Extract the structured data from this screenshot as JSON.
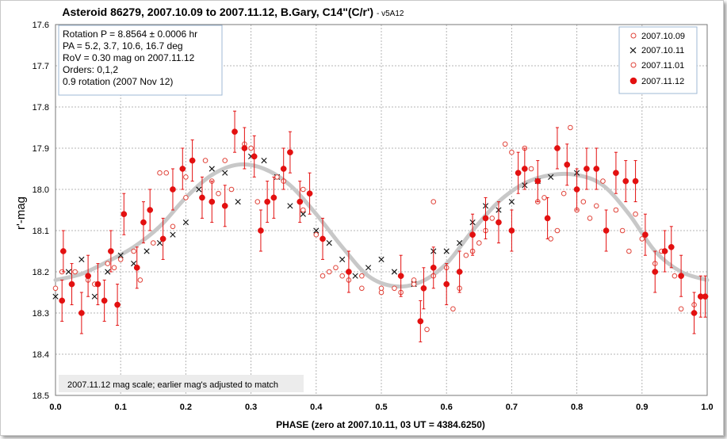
{
  "chart_data": {
    "type": "scatter",
    "title": "Asteroid 86279, 2007.10.09 to 2007.11.12, B.Gary, C14\"(C/r')",
    "title_suffix": "- v5A12",
    "xlabel": "PHASE (zero at 2007.10.11, 03 UT = 4384.6250)",
    "ylabel": "r'-mag",
    "xlim": [
      0.0,
      1.0
    ],
    "ylim": [
      17.6,
      18.5
    ],
    "y_inverted": true,
    "grid": true,
    "legend_position": "top-right",
    "x_ticks": [
      "0.0",
      "0.1",
      "0.2",
      "0.3",
      "0.4",
      "0.5",
      "0.6",
      "0.7",
      "0.8",
      "0.9",
      "1.0"
    ],
    "y_ticks": [
      "17.6",
      "17.7",
      "17.8",
      "17.9",
      "18.0",
      "18.1",
      "18.2",
      "18.3",
      "18.4",
      "18.5"
    ],
    "info_lines": [
      "Rotation P = 8.8564 ± 0.0006 hr",
      "PA =  5.2, 3.7, 10.6, 16.7 deg",
      "RoV = 0.30 mag on 2007.11.12",
      "Orders: 0,1,2",
      " 0.9 rotation (2007 Nov 12)"
    ],
    "note": "2007.11.12 mag scale; earlier mag's adjusted to match",
    "fit_curve": {
      "color": "#c8c8c8",
      "points": [
        [
          0.0,
          18.22
        ],
        [
          0.04,
          18.205
        ],
        [
          0.08,
          18.175
        ],
        [
          0.12,
          18.14
        ],
        [
          0.16,
          18.09
        ],
        [
          0.2,
          18.02
        ],
        [
          0.24,
          17.965
        ],
        [
          0.28,
          17.94
        ],
        [
          0.32,
          17.95
        ],
        [
          0.36,
          17.99
        ],
        [
          0.4,
          18.06
        ],
        [
          0.44,
          18.14
        ],
        [
          0.48,
          18.21
        ],
        [
          0.52,
          18.235
        ],
        [
          0.56,
          18.225
        ],
        [
          0.6,
          18.18
        ],
        [
          0.64,
          18.1
        ],
        [
          0.68,
          18.03
        ],
        [
          0.72,
          17.985
        ],
        [
          0.76,
          17.965
        ],
        [
          0.8,
          17.965
        ],
        [
          0.84,
          17.99
        ],
        [
          0.88,
          18.06
        ],
        [
          0.92,
          18.15
        ],
        [
          0.96,
          18.2
        ],
        [
          1.0,
          18.22
        ]
      ]
    },
    "series": [
      {
        "name": "2007.10.09",
        "marker": "open-circle",
        "color": "#e0443a",
        "points": [
          [
            0.0,
            18.24
          ],
          [
            0.03,
            18.2
          ],
          [
            0.06,
            18.23
          ],
          [
            0.08,
            18.18
          ],
          [
            0.1,
            18.17
          ],
          [
            0.12,
            18.15
          ],
          [
            0.15,
            18.13
          ],
          [
            0.18,
            18.09
          ],
          [
            0.2,
            18.02
          ],
          [
            0.24,
            17.98
          ],
          [
            0.26,
            17.93
          ],
          [
            0.27,
            18.0
          ],
          [
            0.3,
            17.9
          ],
          [
            0.34,
            17.97
          ],
          [
            0.38,
            18.05
          ],
          [
            0.4,
            18.11
          ],
          [
            0.42,
            18.2
          ],
          [
            0.44,
            18.21
          ],
          [
            0.47,
            18.24
          ],
          [
            0.5,
            18.25
          ],
          [
            0.52,
            18.24
          ],
          [
            0.55,
            18.23
          ],
          [
            0.58,
            18.21
          ],
          [
            0.6,
            18.19
          ],
          [
            0.62,
            18.24
          ],
          [
            0.64,
            18.15
          ],
          [
            0.66,
            18.1
          ],
          [
            0.69,
            17.89
          ],
          [
            0.72,
            17.9
          ],
          [
            0.74,
            18.03
          ],
          [
            0.76,
            18.12
          ],
          [
            0.78,
            18.01
          ],
          [
            0.8,
            18.05
          ],
          [
            0.82,
            18.07
          ],
          [
            0.84,
            17.98
          ],
          [
            0.86,
            18.05
          ],
          [
            0.88,
            18.15
          ],
          [
            0.9,
            18.12
          ],
          [
            0.92,
            18.18
          ],
          [
            0.95,
            18.21
          ],
          [
            0.98,
            18.28
          ]
        ]
      },
      {
        "name": "2007.10.11",
        "marker": "x",
        "color": "#111111",
        "points": [
          [
            0.0,
            18.26
          ],
          [
            0.02,
            18.2
          ],
          [
            0.04,
            18.17
          ],
          [
            0.06,
            18.26
          ],
          [
            0.08,
            18.2
          ],
          [
            0.1,
            18.16
          ],
          [
            0.12,
            18.18
          ],
          [
            0.14,
            18.15
          ],
          [
            0.16,
            18.13
          ],
          [
            0.18,
            18.11
          ],
          [
            0.2,
            18.08
          ],
          [
            0.22,
            18.0
          ],
          [
            0.24,
            17.95
          ],
          [
            0.26,
            17.96
          ],
          [
            0.28,
            18.03
          ],
          [
            0.3,
            17.92
          ],
          [
            0.32,
            17.93
          ],
          [
            0.34,
            17.97
          ],
          [
            0.36,
            18.04
          ],
          [
            0.38,
            18.06
          ],
          [
            0.4,
            18.1
          ],
          [
            0.42,
            18.13
          ],
          [
            0.44,
            18.17
          ],
          [
            0.46,
            18.21
          ],
          [
            0.48,
            18.19
          ],
          [
            0.5,
            18.17
          ],
          [
            0.52,
            18.2
          ],
          [
            0.55,
            18.23
          ],
          [
            0.58,
            18.15
          ],
          [
            0.6,
            18.15
          ],
          [
            0.62,
            18.13
          ],
          [
            0.64,
            18.08
          ],
          [
            0.66,
            18.04
          ],
          [
            0.68,
            18.05
          ],
          [
            0.7,
            18.03
          ],
          [
            0.72,
            17.99
          ],
          [
            0.74,
            17.98
          ],
          [
            0.76,
            17.97
          ],
          [
            0.8,
            17.96
          ]
        ]
      },
      {
        "name": "2007.11.01",
        "marker": "open-circle",
        "color": "#e0443a",
        "points": [
          [
            0.01,
            18.2
          ],
          [
            0.05,
            18.22
          ],
          [
            0.09,
            18.19
          ],
          [
            0.13,
            18.22
          ],
          [
            0.16,
            17.96
          ],
          [
            0.17,
            17.96
          ],
          [
            0.2,
            17.97
          ],
          [
            0.23,
            17.93
          ],
          [
            0.25,
            18.01
          ],
          [
            0.29,
            17.89
          ],
          [
            0.31,
            18.03
          ],
          [
            0.35,
            17.98
          ],
          [
            0.38,
            18.0
          ],
          [
            0.41,
            18.21
          ],
          [
            0.43,
            18.19
          ],
          [
            0.45,
            18.22
          ],
          [
            0.47,
            18.21
          ],
          [
            0.5,
            18.24
          ],
          [
            0.53,
            18.25
          ],
          [
            0.55,
            18.22
          ],
          [
            0.57,
            18.34
          ],
          [
            0.58,
            18.03
          ],
          [
            0.61,
            18.29
          ],
          [
            0.63,
            18.16
          ],
          [
            0.65,
            18.13
          ],
          [
            0.67,
            18.07
          ],
          [
            0.7,
            17.91
          ],
          [
            0.73,
            17.95
          ],
          [
            0.75,
            18.02
          ],
          [
            0.77,
            18.1
          ],
          [
            0.79,
            17.85
          ],
          [
            0.81,
            18.03
          ],
          [
            0.83,
            18.04
          ],
          [
            0.87,
            18.1
          ],
          [
            0.89,
            18.06
          ],
          [
            0.93,
            18.15
          ],
          [
            0.96,
            18.29
          ]
        ]
      },
      {
        "name": "2007.11.12",
        "marker": "filled-circle",
        "color": "#e31010",
        "error_bars": true,
        "points": [
          [
            0.01,
            18.27,
            0.05
          ],
          [
            0.012,
            18.15,
            0.05
          ],
          [
            0.025,
            18.23,
            0.05
          ],
          [
            0.04,
            18.3,
            0.05
          ],
          [
            0.05,
            18.21,
            0.05
          ],
          [
            0.065,
            18.23,
            0.05
          ],
          [
            0.075,
            18.27,
            0.05
          ],
          [
            0.085,
            18.15,
            0.05
          ],
          [
            0.095,
            18.28,
            0.05
          ],
          [
            0.105,
            18.06,
            0.05
          ],
          [
            0.125,
            18.19,
            0.05
          ],
          [
            0.135,
            18.08,
            0.05
          ],
          [
            0.145,
            18.05,
            0.05
          ],
          [
            0.165,
            18.12,
            0.05
          ],
          [
            0.18,
            18.0,
            0.05
          ],
          [
            0.195,
            17.95,
            0.05
          ],
          [
            0.21,
            17.93,
            0.05
          ],
          [
            0.225,
            18.02,
            0.05
          ],
          [
            0.24,
            18.03,
            0.05
          ],
          [
            0.26,
            18.04,
            0.05
          ],
          [
            0.275,
            17.86,
            0.05
          ],
          [
            0.29,
            17.9,
            0.05
          ],
          [
            0.305,
            17.92,
            0.05
          ],
          [
            0.315,
            18.1,
            0.05
          ],
          [
            0.325,
            18.03,
            0.05
          ],
          [
            0.335,
            18.02,
            0.05
          ],
          [
            0.35,
            17.95,
            0.05
          ],
          [
            0.36,
            17.91,
            0.05
          ],
          [
            0.375,
            18.03,
            0.05
          ],
          [
            0.39,
            18.01,
            0.05
          ],
          [
            0.41,
            18.12,
            0.05
          ],
          [
            0.45,
            18.2,
            0.05
          ],
          [
            0.53,
            18.21,
            0.05
          ],
          [
            0.56,
            18.32,
            0.05
          ],
          [
            0.565,
            18.24,
            0.05
          ],
          [
            0.58,
            18.19,
            0.05
          ],
          [
            0.6,
            18.23,
            0.05
          ],
          [
            0.62,
            18.2,
            0.05
          ],
          [
            0.64,
            18.11,
            0.05
          ],
          [
            0.66,
            18.07,
            0.05
          ],
          [
            0.68,
            18.08,
            0.05
          ],
          [
            0.7,
            18.1,
            0.05
          ],
          [
            0.71,
            17.96,
            0.05
          ],
          [
            0.72,
            17.95,
            0.05
          ],
          [
            0.74,
            17.98,
            0.05
          ],
          [
            0.755,
            18.07,
            0.05
          ],
          [
            0.77,
            17.9,
            0.05
          ],
          [
            0.785,
            17.94,
            0.05
          ],
          [
            0.8,
            18.0,
            0.05
          ],
          [
            0.815,
            17.95,
            0.05
          ],
          [
            0.83,
            17.95,
            0.05
          ],
          [
            0.845,
            18.1,
            0.05
          ],
          [
            0.86,
            17.96,
            0.05
          ],
          [
            0.875,
            17.98,
            0.05
          ],
          [
            0.89,
            17.98,
            0.05
          ],
          [
            0.905,
            18.11,
            0.05
          ],
          [
            0.92,
            18.2,
            0.05
          ],
          [
            0.935,
            18.15,
            0.05
          ],
          [
            0.945,
            18.14,
            0.05
          ],
          [
            0.96,
            18.21,
            0.05
          ],
          [
            0.98,
            18.3,
            0.05
          ],
          [
            0.99,
            18.26,
            0.05
          ],
          [
            0.997,
            18.26,
            0.05
          ]
        ]
      }
    ]
  }
}
